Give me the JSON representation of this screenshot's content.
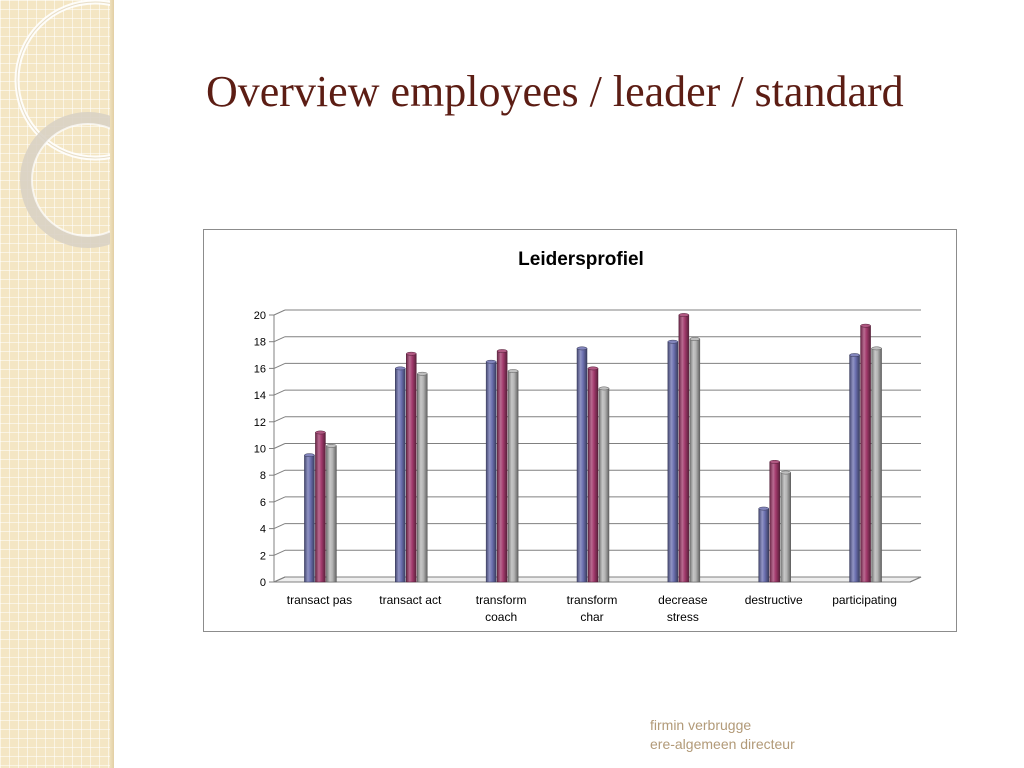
{
  "slide": {
    "title": "Overview employees / leader / standard",
    "footer_line1": "firmin verbrugge",
    "footer_line2": "ere-algemeen directeur"
  },
  "colors": {
    "title": "#5c1d14",
    "footer": "#b29a78",
    "band": "#f4e6c4"
  },
  "chart_data": {
    "type": "bar",
    "title": "Leidersprofiel",
    "xlabel": "",
    "ylabel": "",
    "ylim": [
      0,
      20
    ],
    "yticks": [
      0,
      2,
      4,
      6,
      8,
      10,
      12,
      14,
      16,
      18,
      20
    ],
    "grid": true,
    "categories": [
      [
        "transact pas"
      ],
      [
        "transact act"
      ],
      [
        "transform",
        "coach"
      ],
      [
        "transform",
        "char"
      ],
      [
        "decrease",
        "stress"
      ],
      [
        "destructive"
      ],
      [
        "participating"
      ]
    ],
    "series": [
      {
        "values": [
          9.5,
          16.0,
          16.5,
          17.5,
          18.0,
          5.5,
          17.0
        ],
        "color": "#6c70b0"
      },
      {
        "values": [
          11.2,
          17.1,
          17.3,
          16.0,
          20.0,
          9.0,
          19.2
        ],
        "color": "#a23a6c"
      },
      {
        "values": [
          10.2,
          15.6,
          15.8,
          14.5,
          18.2,
          8.2,
          17.5
        ],
        "color": "#b4b4b4"
      }
    ]
  }
}
